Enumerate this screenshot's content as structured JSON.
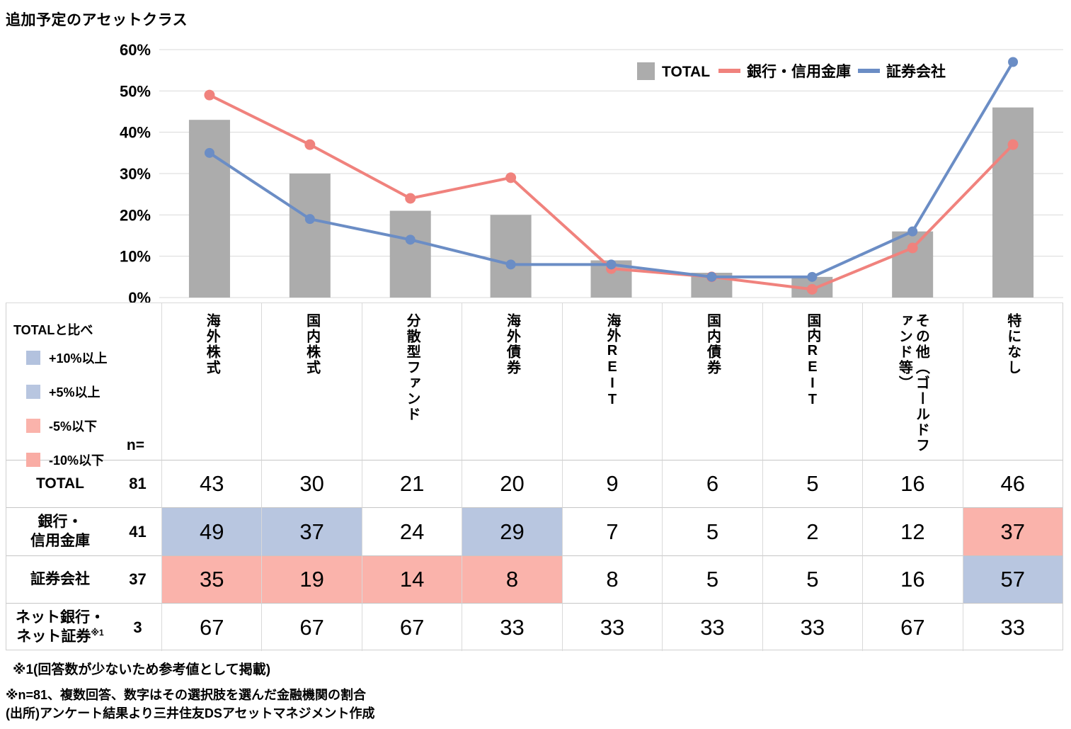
{
  "title": "追加予定のアセットクラス",
  "colors": {
    "bar": "#ACACAC",
    "bank_line": "#F0827D",
    "securities_line": "#6B8DC5",
    "grid": "#D9D9D9",
    "cell_above_total": "#B8C6E0",
    "cell_below_total": "#FAB3AB"
  },
  "chart_data": {
    "type": "bar+line combo",
    "title": "追加予定のアセットクラス",
    "categories": [
      "海外株式",
      "国内株式",
      "分散型ファンド",
      "海外債券",
      "海外REIT",
      "国内債券",
      "国内REIT",
      "その他（ゴールドファンド等）",
      "特になし"
    ],
    "series": [
      {
        "name": "TOTAL",
        "type": "bar",
        "color": "#ACACAC",
        "values": [
          43,
          30,
          21,
          20,
          9,
          6,
          5,
          16,
          46
        ]
      },
      {
        "name": "銀行・信用金庫",
        "type": "line",
        "color": "#F0827D",
        "values": [
          49,
          37,
          24,
          29,
          7,
          5,
          2,
          12,
          37
        ]
      },
      {
        "name": "証券会社",
        "type": "line",
        "color": "#6B8DC5",
        "values": [
          35,
          19,
          14,
          8,
          8,
          5,
          5,
          16,
          57
        ]
      }
    ],
    "ylim": [
      0,
      60
    ],
    "y_ticks": [
      "0%",
      "10%",
      "20%",
      "30%",
      "40%",
      "50%",
      "60%"
    ],
    "grid": "horizontal gridlines on",
    "legend_position": "top-right inside plot"
  },
  "compare_legend": {
    "title": "TOTALと比べ",
    "items": [
      {
        "label": "+10%以上",
        "color": "#B3C2DE"
      },
      {
        "label": "+5%以上",
        "color": "#B8C6E0"
      },
      {
        "label": "-5%以下",
        "color": "#FAB3AB"
      },
      {
        "label": "-10%以下",
        "color": "#F9ACA4"
      }
    ],
    "n_header": "n="
  },
  "table": {
    "rows": [
      {
        "label_lines": [
          "TOTAL"
        ],
        "label_sup": "",
        "n": "81",
        "values": [
          "43",
          "30",
          "21",
          "20",
          "9",
          "6",
          "5",
          "16",
          "46"
        ],
        "cell_colors": [
          "",
          "",
          "",
          "",
          "",
          "",
          "",
          "",
          ""
        ]
      },
      {
        "label_lines": [
          "銀行・",
          "信用金庫"
        ],
        "label_sup": "",
        "n": "41",
        "values": [
          "49",
          "37",
          "24",
          "29",
          "7",
          "5",
          "2",
          "12",
          "37"
        ],
        "cell_colors": [
          "above",
          "above",
          "",
          "above",
          "",
          "",
          "",
          "",
          "below"
        ]
      },
      {
        "label_lines": [
          "証券会社"
        ],
        "label_sup": "",
        "n": "37",
        "values": [
          "35",
          "19",
          "14",
          "8",
          "8",
          "5",
          "5",
          "16",
          "57"
        ],
        "cell_colors": [
          "below",
          "below",
          "below",
          "below",
          "",
          "",
          "",
          "",
          "above"
        ]
      },
      {
        "label_lines": [
          "ネット銀行・",
          "ネット証券"
        ],
        "label_sup": "※1",
        "n": "3",
        "values": [
          "67",
          "67",
          "67",
          "33",
          "33",
          "33",
          "33",
          "67",
          "33"
        ],
        "cell_colors": [
          "",
          "",
          "",
          "",
          "",
          "",
          "",
          "",
          ""
        ]
      }
    ]
  },
  "footnotes": [
    "※1(回答数が少ないため参考値として掲載)",
    "※n=81、複数回答、数字はその選択肢を選んだ金融機関の割合",
    "(出所)アンケート結果より三井住友DSアセットマネジメント作成"
  ]
}
